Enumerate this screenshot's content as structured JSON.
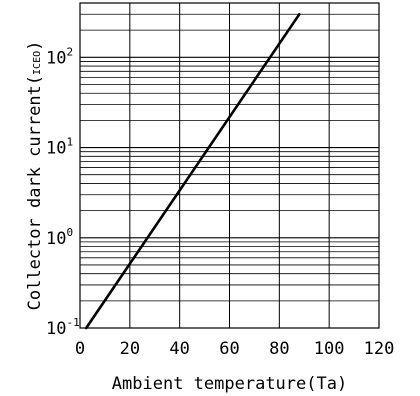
{
  "chart_data": {
    "type": "line",
    "title": "",
    "xlabel": "Ambient temperature(Ta)",
    "ylabel_main": "Collector dark current(",
    "ylabel_sub": "ICEO",
    "ylabel_close": ")",
    "x_scale": "linear",
    "y_scale": "log",
    "xlim": [
      0,
      120
    ],
    "ylim": [
      0.1,
      400
    ],
    "x_ticks": [
      0,
      20,
      40,
      60,
      80,
      100,
      120
    ],
    "x_tick_labels": [
      "0",
      "20",
      "40",
      "60",
      "80",
      "100",
      "120"
    ],
    "y_major_ticks": [
      {
        "value": 0.1,
        "base": "10",
        "exp": "-1"
      },
      {
        "value": 1,
        "base": "10",
        "exp": "0"
      },
      {
        "value": 10,
        "base": "10",
        "exp": "1"
      },
      {
        "value": 100,
        "base": "10",
        "exp": "2"
      }
    ],
    "grid": true,
    "series": [
      {
        "color": "#000000",
        "x": [
          2.5,
          88
        ],
        "y": [
          0.1,
          300
        ]
      }
    ]
  }
}
